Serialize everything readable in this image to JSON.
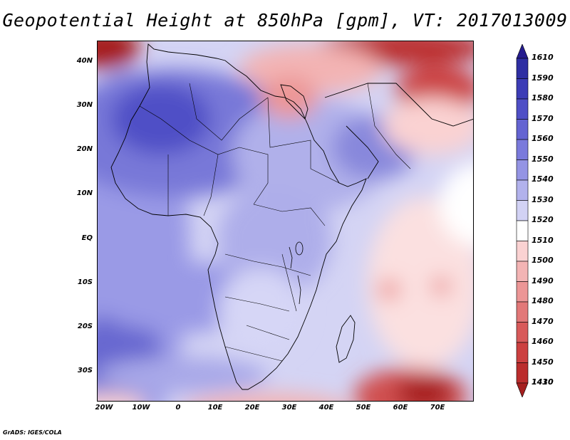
{
  "title": "Geopotential Height at 850hPa [gpm], VT: 2017013009",
  "credit": "GrADS: IGES/COLA",
  "map": {
    "lat_labels": [
      "40N",
      "30N",
      "20N",
      "10N",
      "EQ",
      "10S",
      "20S",
      "30S"
    ],
    "lon_labels": [
      "20W",
      "10W",
      "0",
      "10E",
      "20E",
      "30E",
      "40E",
      "50E",
      "60E",
      "70E"
    ]
  },
  "colorbar": {
    "labels": [
      "1610",
      "1590",
      "1580",
      "1570",
      "1560",
      "1550",
      "1540",
      "1530",
      "1520",
      "1510",
      "1500",
      "1490",
      "1480",
      "1470",
      "1460",
      "1450",
      "1430",
      "1410"
    ],
    "colors": [
      "#251c8e",
      "#2e2ea3",
      "#3c3cb6",
      "#4f4fc6",
      "#6464d2",
      "#7a7adc",
      "#9494e4",
      "#b2b2ec",
      "#d2d2f4",
      "#ffffff",
      "#fad2d2",
      "#f3b4b4",
      "#ec9696",
      "#e27878",
      "#d85a5a",
      "#cc4040",
      "#bb2d2d",
      "#a51f1f"
    ]
  }
}
